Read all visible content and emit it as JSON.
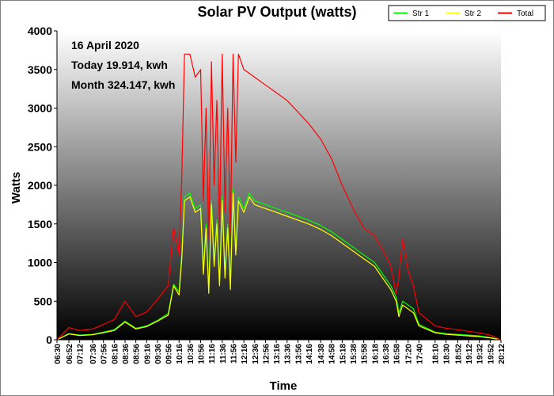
{
  "chart_data": {
    "type": "line",
    "title": "Solar PV Output (watts)",
    "xlabel": "Time",
    "ylabel": "Watts",
    "ylim": [
      0,
      4000
    ],
    "yticks": [
      0,
      500,
      1000,
      1500,
      2000,
      2500,
      3000,
      3500,
      4000
    ],
    "xticks": [
      "06:30",
      "06:52",
      "07:12",
      "07:36",
      "07:56",
      "08:16",
      "08:36",
      "08:56",
      "09:16",
      "09:36",
      "09:56",
      "10:16",
      "10:36",
      "10:56",
      "11:16",
      "11:36",
      "11:56",
      "12:16",
      "12:36",
      "12:56",
      "13:16",
      "13:36",
      "13:56",
      "14:16",
      "14:38",
      "14:58",
      "15:18",
      "15:38",
      "15:58",
      "16:18",
      "16:38",
      "16:58",
      "17:20",
      "17:40",
      "18:10",
      "18:30",
      "18:52",
      "19:12",
      "19:32",
      "19:52",
      "20:12"
    ],
    "legend_position": "top-right",
    "grid": false,
    "annotations": [
      "16 April 2020",
      "Today 19.914, kwh",
      "Month 324.147, kwh"
    ],
    "x": [
      "06:30",
      "06:52",
      "07:12",
      "07:36",
      "07:56",
      "08:16",
      "08:36",
      "08:56",
      "09:16",
      "09:36",
      "09:56",
      "10:06",
      "10:16",
      "10:21",
      "10:26",
      "10:36",
      "10:46",
      "10:56",
      "11:01",
      "11:06",
      "11:11",
      "11:16",
      "11:21",
      "11:26",
      "11:31",
      "11:36",
      "11:41",
      "11:46",
      "11:51",
      "11:56",
      "12:01",
      "12:06",
      "12:16",
      "12:26",
      "12:36",
      "12:56",
      "13:16",
      "13:36",
      "13:56",
      "14:16",
      "14:38",
      "14:58",
      "15:18",
      "15:38",
      "15:58",
      "16:18",
      "16:38",
      "16:48",
      "16:58",
      "17:03",
      "17:10",
      "17:20",
      "17:30",
      "17:40",
      "18:10",
      "18:30",
      "18:52",
      "19:12",
      "19:32",
      "19:52",
      "20:12"
    ],
    "series": [
      {
        "name": "Str 1",
        "color": "#00ff00",
        "values": [
          0,
          80,
          60,
          70,
          100,
          130,
          240,
          150,
          180,
          250,
          340,
          720,
          620,
          1100,
          1850,
          1900,
          1700,
          1750,
          900,
          1500,
          650,
          1800,
          1000,
          1550,
          750,
          1850,
          850,
          1500,
          700,
          1950,
          1150,
          1850,
          1700,
          1900,
          1800,
          1750,
          1700,
          1650,
          1600,
          1550,
          1480,
          1400,
          1300,
          1200,
          1100,
          1000,
          800,
          700,
          550,
          350,
          500,
          450,
          400,
          200,
          100,
          80,
          70,
          60,
          50,
          30,
          0
        ]
      },
      {
        "name": "Str 2",
        "color": "#ffff00",
        "values": [
          0,
          75,
          55,
          65,
          90,
          120,
          230,
          140,
          170,
          240,
          320,
          700,
          580,
          1050,
          1800,
          1850,
          1650,
          1700,
          850,
          1450,
          600,
          1750,
          950,
          1500,
          700,
          1800,
          800,
          1450,
          650,
          1900,
          1100,
          1800,
          1650,
          1850,
          1750,
          1700,
          1650,
          1600,
          1550,
          1500,
          1430,
          1350,
          1250,
          1150,
          1050,
          950,
          750,
          650,
          500,
          300,
          450,
          400,
          350,
          180,
          90,
          70,
          60,
          50,
          40,
          25,
          0
        ]
      },
      {
        "name": "Total",
        "color": "#ff0000",
        "values": [
          0,
          160,
          120,
          140,
          200,
          260,
          500,
          300,
          360,
          520,
          700,
          1450,
          1100,
          2100,
          3700,
          3700,
          3400,
          3500,
          1800,
          3000,
          1300,
          3600,
          2000,
          3100,
          1450,
          3700,
          1650,
          3000,
          1350,
          3700,
          2300,
          3700,
          3500,
          3450,
          3400,
          3300,
          3200,
          3100,
          2950,
          2800,
          2600,
          2350,
          2000,
          1700,
          1450,
          1350,
          1100,
          950,
          600,
          800,
          1300,
          900,
          700,
          350,
          180,
          150,
          130,
          110,
          90,
          60,
          0
        ]
      }
    ]
  }
}
